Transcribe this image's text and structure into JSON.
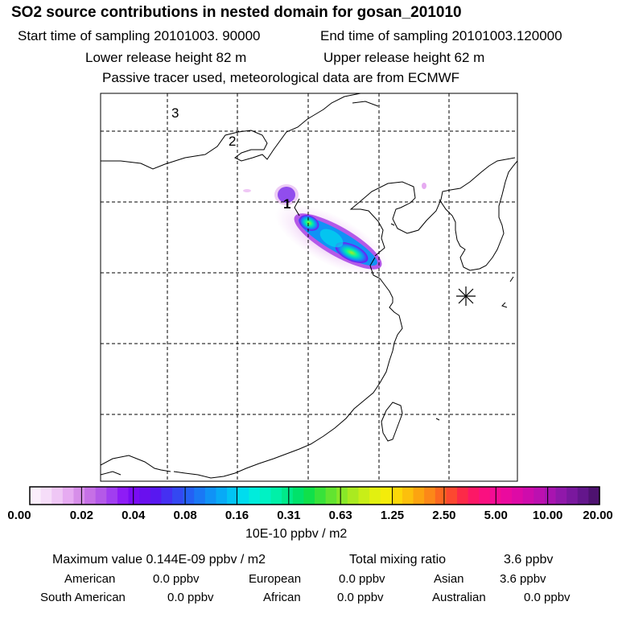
{
  "header": {
    "title": "SO2 source contributions in nested domain for gosan_201010",
    "start_label": "Start time of sampling 20101003. 90000",
    "end_label": "End time of sampling 20101003.120000",
    "lower_label": "Lower release height   82 m",
    "upper_label": "Upper release height   62 m",
    "tracer_label": "Passive tracer used, meteorological data are from ECMWF"
  },
  "map": {
    "domain_labels": [
      "1",
      "2",
      "3"
    ],
    "receptor_marker": "star-icon"
  },
  "chart_data": {
    "type": "heatmap",
    "title": "SO2 source contributions in nested domain for gosan_201010",
    "colorbar": {
      "tick_labels": [
        "0.00",
        "0.02",
        "0.04",
        "0.08",
        "0.16",
        "0.31",
        "0.63",
        "1.25",
        "2.50",
        "5.00",
        "10.00",
        "20.00"
      ],
      "units": "10E-10 ppbv / m2",
      "colors": [
        "#fbeefc",
        "#f6ddf9",
        "#efc7f5",
        "#e6abf1",
        "#d78ee9",
        "#c670e6",
        "#b459e8",
        "#a13ef0",
        "#8e1cf6",
        "#7a0cf4",
        "#6a10ee",
        "#5818f0",
        "#4530f2",
        "#3448f2",
        "#2460f4",
        "#1a78f5",
        "#1092f6",
        "#08aaf6",
        "#02c4f4",
        "#00dcee",
        "#00ecdc",
        "#00f2c4",
        "#00f0a8",
        "#00ea8a",
        "#00e26a",
        "#10e04a",
        "#38e23a",
        "#62e430",
        "#88e828",
        "#aaea20",
        "#c8ee18",
        "#e2f010",
        "#f4ec0a",
        "#fcd808",
        "#fcc00c",
        "#fca410",
        "#fc8818",
        "#fc6820",
        "#fc4830",
        "#fc2a48",
        "#fc1866",
        "#fa1080",
        "#f40c94",
        "#ea0a9e",
        "#de0aa6",
        "#ce0cac",
        "#bc10b0",
        "#a814b0",
        "#9018aa",
        "#7a189e",
        "#64168c",
        "#4e1270"
      ]
    },
    "plume_points_approx": [
      {
        "lat": 40.3,
        "lon": 115.7,
        "value": 0.1
      },
      {
        "lat": 39.6,
        "lon": 116.0,
        "value": 1.0
      },
      {
        "lat": 39.4,
        "lon": 116.6,
        "value": 0.4
      },
      {
        "lat": 38.8,
        "lon": 117.5,
        "value": 1.0
      },
      {
        "lat": 38.6,
        "lon": 118.0,
        "value": 0.3
      },
      {
        "lat": 41.0,
        "lon": 118.6,
        "value": 0.02
      }
    ]
  },
  "stats": {
    "max_label": "Maximum value  0.144E-09 ppbv / m2",
    "total_label": "Total mixing ratio",
    "total_value": "3.6 ppbv",
    "american_label": "American",
    "american_value": "0.0 ppbv",
    "european_label": "European",
    "european_value": "0.0 ppbv",
    "asian_label": "Asian",
    "asian_value": "3.6 ppbv",
    "south_american_label": "South American",
    "south_american_value": "0.0 ppbv",
    "african_label": "African",
    "african_value": "0.0 ppbv",
    "australian_label": "Australian",
    "australian_value": "0.0 ppbv"
  }
}
